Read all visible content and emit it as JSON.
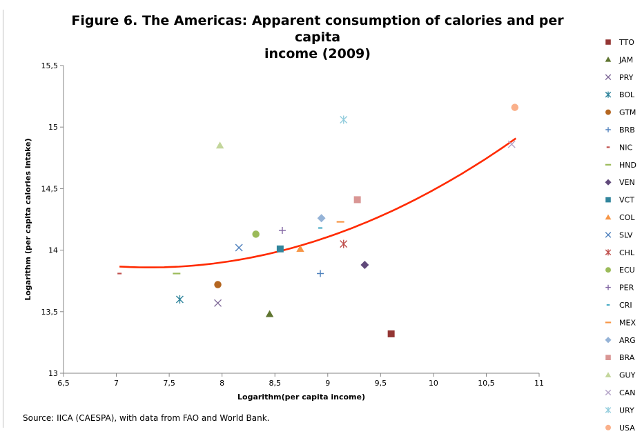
{
  "chart_data": {
    "type": "scatter",
    "title_line1": "Figure 6. The Americas: Apparent consumption of calories and per capita",
    "title_line2": "income (2009)",
    "xlabel": "Logarithm(per capita income)",
    "ylabel": "Logarithm (per capita calories intake)",
    "xlim": [
      6.5,
      11
    ],
    "ylim": [
      13,
      15.5
    ],
    "x_ticks": [
      "6,5",
      "7",
      "7,5",
      "8",
      "8,5",
      "9",
      "9,5",
      "10",
      "10,5",
      "11"
    ],
    "y_ticks": [
      "13",
      "13,5",
      "14",
      "14,5",
      "15",
      "15,5"
    ],
    "grid": false,
    "legend_position": "right",
    "source": "Source: IICA (CAESPA), with data from FAO and World Bank.",
    "trendline": {
      "type": "polynomial-2",
      "color": "#ff2a00",
      "x_range": [
        7.03,
        10.78
      ]
    },
    "series": [
      {
        "name": "TTO",
        "marker": "square",
        "color": "#943634",
        "x": 9.6,
        "y": 13.32
      },
      {
        "name": "JAM",
        "marker": "triangle",
        "color": "#5f7530",
        "x": 8.45,
        "y": 13.48
      },
      {
        "name": "PRY",
        "marker": "x",
        "color": "#7f6998",
        "x": 7.96,
        "y": 13.57
      },
      {
        "name": "BOL",
        "marker": "star",
        "color": "#31859c",
        "x": 7.6,
        "y": 13.6
      },
      {
        "name": "GTM",
        "marker": "circle",
        "color": "#b46620",
        "x": 7.96,
        "y": 13.72
      },
      {
        "name": "BRB",
        "marker": "plus",
        "color": "#4f81bd",
        "x": 8.93,
        "y": 13.81
      },
      {
        "name": "NIC",
        "marker": "shortdash",
        "color": "#c0504d",
        "x": 7.03,
        "y": 13.81
      },
      {
        "name": "HND",
        "marker": "dash",
        "color": "#9bbb59",
        "x": 7.57,
        "y": 13.81
      },
      {
        "name": "VEN",
        "marker": "diamond",
        "color": "#60497a",
        "x": 9.35,
        "y": 13.88
      },
      {
        "name": "VCT",
        "marker": "square",
        "color": "#31859c",
        "x": 8.55,
        "y": 14.01
      },
      {
        "name": "COL",
        "marker": "triangle",
        "color": "#f79646",
        "x": 8.74,
        "y": 14.01
      },
      {
        "name": "SLV",
        "marker": "x",
        "color": "#4f81bd",
        "x": 8.16,
        "y": 14.02
      },
      {
        "name": "CHL",
        "marker": "star",
        "color": "#c0504d",
        "x": 9.15,
        "y": 14.05
      },
      {
        "name": "ECU",
        "marker": "circle",
        "color": "#9bbb59",
        "x": 8.32,
        "y": 14.13
      },
      {
        "name": "PER",
        "marker": "plus",
        "color": "#8064a2",
        "x": 8.57,
        "y": 14.16
      },
      {
        "name": "CRI",
        "marker": "shortdash",
        "color": "#4bacc6",
        "x": 8.93,
        "y": 14.18
      },
      {
        "name": "MEX",
        "marker": "dash",
        "color": "#f79646",
        "x": 9.12,
        "y": 14.23
      },
      {
        "name": "ARG",
        "marker": "diamond",
        "color": "#95b3d7",
        "x": 8.94,
        "y": 14.26
      },
      {
        "name": "BRA",
        "marker": "square",
        "color": "#d99694",
        "x": 9.28,
        "y": 14.41
      },
      {
        "name": "GUY",
        "marker": "triangle",
        "color": "#c3d69b",
        "x": 7.98,
        "y": 14.85
      },
      {
        "name": "CAN",
        "marker": "x",
        "color": "#b3a2c7",
        "x": 10.74,
        "y": 14.86
      },
      {
        "name": "URY",
        "marker": "star",
        "color": "#93cddd",
        "x": 9.15,
        "y": 15.06
      },
      {
        "name": "USA",
        "marker": "circle",
        "color": "#fab08a",
        "x": 10.77,
        "y": 15.16
      }
    ]
  }
}
